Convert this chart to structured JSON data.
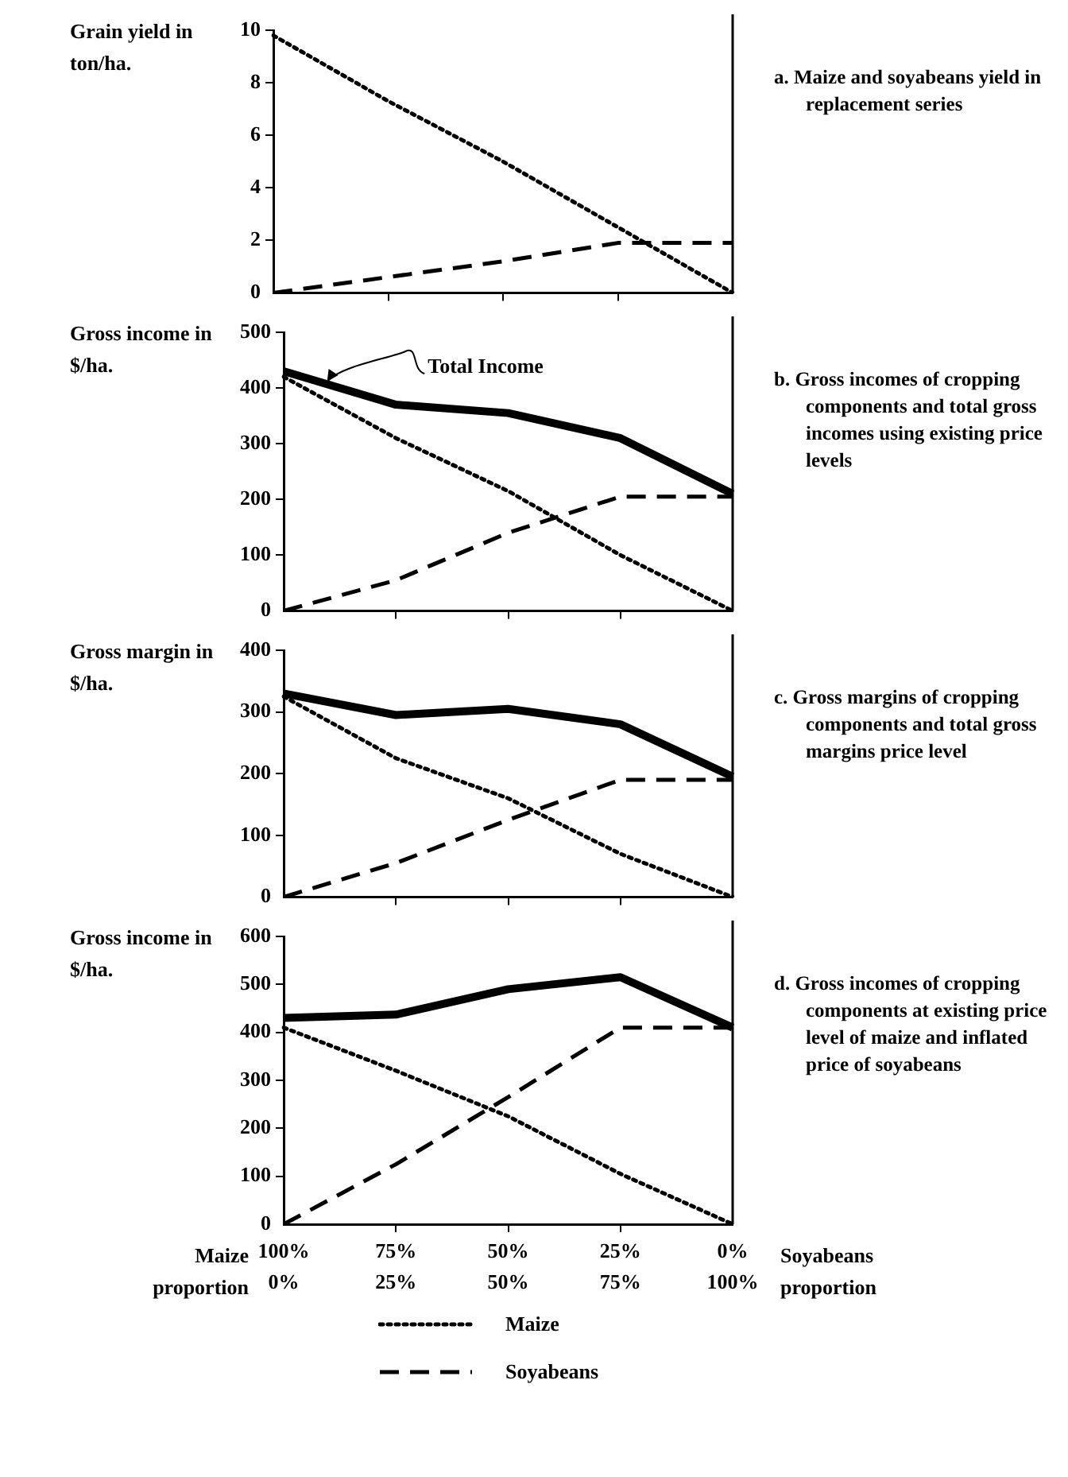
{
  "chart_data": [
    {
      "type": "line",
      "ylabel": "Grain yield in ton/ha.",
      "categories": [
        null,
        null,
        null,
        null,
        null
      ],
      "tick_labels": "y",
      "ylim": [
        0,
        10
      ],
      "yticks": [
        0,
        2,
        4,
        6,
        8,
        10
      ],
      "annotations": [
        "a. Maize and soyabeans yield in replacement series"
      ],
      "series": [
        {
          "color": "#000000",
          "line_style": "dotted",
          "values": [
            9.8,
            7.3,
            5.0,
            2.5,
            0
          ]
        },
        {
          "color": "#000000",
          "line_style": "dashed",
          "values": [
            0,
            0.6,
            1.2,
            1.9,
            1.9
          ]
        }
      ]
    },
    {
      "type": "line",
      "ylabel": "Gross income in $/ha.",
      "categories": [
        null,
        null,
        null,
        null,
        null
      ],
      "tick_labels": "y",
      "ylim": [
        0,
        500
      ],
      "yticks": [
        0,
        100,
        200,
        300,
        400,
        500
      ],
      "annotations": [
        "b. Gross incomes of cropping components and total gross incomes using existing price levels",
        "Total Income"
      ],
      "series": [
        {
          "color": "#000000",
          "line_style": "solid",
          "values": [
            430,
            370,
            355,
            310,
            210
          ]
        },
        {
          "color": "#000000",
          "line_style": "dotted",
          "values": [
            420,
            310,
            215,
            100,
            0
          ]
        },
        {
          "color": "#000000",
          "line_style": "dashed",
          "values": [
            0,
            55,
            140,
            205,
            205
          ]
        }
      ]
    },
    {
      "type": "line",
      "ylabel": "Gross margin in $/ha.",
      "categories": [
        null,
        null,
        null,
        null,
        null
      ],
      "tick_labels": "y",
      "ylim": [
        0,
        400
      ],
      "yticks": [
        0,
        100,
        200,
        300,
        400
      ],
      "annotations": [
        "c. Gross margins of cropping components and total gross margins price level"
      ],
      "series": [
        {
          "color": "#000000",
          "line_style": "solid",
          "values": [
            330,
            295,
            305,
            280,
            195
          ]
        },
        {
          "color": "#000000",
          "line_style": "dotted",
          "values": [
            325,
            225,
            160,
            70,
            0
          ]
        },
        {
          "color": "#000000",
          "line_style": "dashed",
          "values": [
            0,
            55,
            125,
            190,
            190
          ]
        }
      ]
    },
    {
      "type": "line",
      "ylabel": "Gross income in $/ha.",
      "xlabel": "Maize proportion",
      "categories": [
        "100%\n0%",
        "75%\n25%",
        "50%\n50%",
        "25%\n75%",
        "0%\n100%"
      ],
      "ylim": [
        0,
        600
      ],
      "yticks": [
        0,
        100,
        200,
        300,
        400,
        500,
        600
      ],
      "legend": "bottom",
      "annotations": [
        "d. Gross incomes of cropping components at existing price level of maize and inflated price of soyabeans",
        "Soyabeans proportion"
      ],
      "series": [
        {
          "color": "#000000",
          "line_style": "solid",
          "values": [
            430,
            437,
            490,
            515,
            410
          ]
        },
        {
          "name": "Maize",
          "color": "#000000",
          "line_style": "dotted",
          "values": [
            410,
            320,
            225,
            105,
            0
          ]
        },
        {
          "name": "Soyabeans",
          "color": "#000000",
          "line_style": "dashed",
          "values": [
            0,
            125,
            265,
            410,
            410
          ]
        }
      ]
    }
  ]
}
